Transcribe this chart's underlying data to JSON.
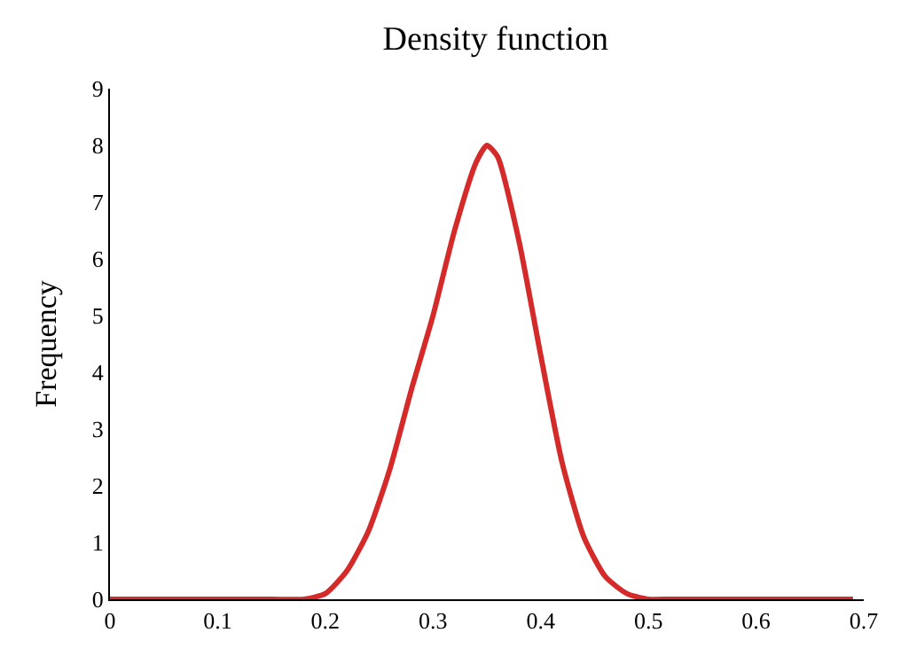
{
  "chart_data": {
    "type": "line",
    "title": "Density function",
    "ylabel": "Frequency",
    "x": [
      0,
      0.05,
      0.1,
      0.15,
      0.18,
      0.2,
      0.22,
      0.24,
      0.26,
      0.28,
      0.3,
      0.32,
      0.34,
      0.35,
      0.36,
      0.38,
      0.4,
      0.42,
      0.44,
      0.46,
      0.48,
      0.5,
      0.52,
      0.55,
      0.6,
      0.65,
      0.69
    ],
    "series": [
      {
        "color": "#d42a2a",
        "values": [
          0,
          0,
          0,
          0,
          0,
          0.1,
          0.5,
          1.2,
          2.3,
          3.7,
          5.0,
          6.5,
          7.7,
          8.0,
          7.8,
          6.3,
          4.3,
          2.4,
          1.1,
          0.4,
          0.1,
          0,
          0,
          0,
          0,
          0,
          0
        ]
      }
    ],
    "xlim": [
      0,
      0.7
    ],
    "xticks": [
      0,
      0.1,
      0.2,
      0.3,
      0.4,
      0.5,
      0.6,
      0.7
    ],
    "ylim": [
      0,
      9
    ],
    "yticks": [
      0,
      1,
      2,
      3,
      4,
      5,
      6,
      7,
      8,
      9
    ],
    "legend": false,
    "marker": "none",
    "line_style": "solid"
  }
}
